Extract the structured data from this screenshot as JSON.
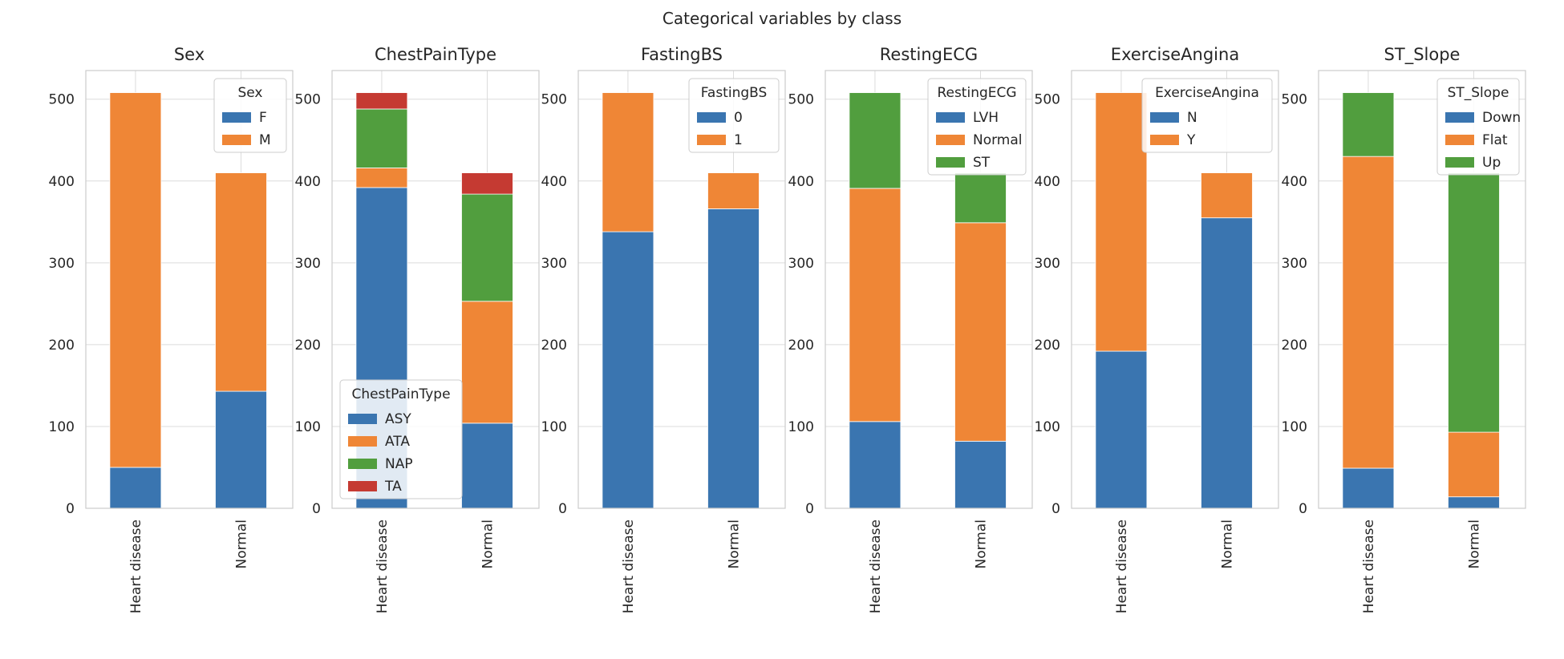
{
  "figure_title": "Categorical variables by class",
  "colors": {
    "blue": "#3a75b0",
    "orange": "#ef8636",
    "green": "#519e3e",
    "red": "#c53a32",
    "grid": "#dcdcdc",
    "spine": "#cccccc",
    "text": "#262626"
  },
  "chart_data": [
    {
      "type": "bar",
      "stacked": true,
      "title": "Sex",
      "categories": [
        "Heart disease",
        "Normal"
      ],
      "ylim": [
        0,
        535
      ],
      "yticks": [
        0,
        100,
        200,
        300,
        400,
        500
      ],
      "grid": true,
      "legend": {
        "title": "Sex",
        "placement": "upper right"
      },
      "series": [
        {
          "name": "F",
          "color": "#3a75b0",
          "values": [
            50,
            143
          ]
        },
        {
          "name": "M",
          "color": "#ef8636",
          "values": [
            458,
            267
          ]
        }
      ]
    },
    {
      "type": "bar",
      "stacked": true,
      "title": "ChestPainType",
      "categories": [
        "Heart disease",
        "Normal"
      ],
      "ylim": [
        0,
        535
      ],
      "yticks": [
        0,
        100,
        200,
        300,
        400,
        500
      ],
      "grid": true,
      "legend": {
        "title": "ChestPainType",
        "placement": "lower left"
      },
      "series": [
        {
          "name": "ASY",
          "color": "#3a75b0",
          "values": [
            392,
            104
          ]
        },
        {
          "name": "ATA",
          "color": "#ef8636",
          "values": [
            24,
            149
          ]
        },
        {
          "name": "NAP",
          "color": "#519e3e",
          "values": [
            72,
            131
          ]
        },
        {
          "name": "TA",
          "color": "#c53a32",
          "values": [
            20,
            26
          ]
        }
      ]
    },
    {
      "type": "bar",
      "stacked": true,
      "title": "FastingBS",
      "categories": [
        "Heart disease",
        "Normal"
      ],
      "ylim": [
        0,
        535
      ],
      "yticks": [
        0,
        100,
        200,
        300,
        400,
        500
      ],
      "grid": true,
      "legend": {
        "title": "FastingBS",
        "placement": "upper right"
      },
      "series": [
        {
          "name": "0",
          "color": "#3a75b0",
          "values": [
            338,
            366
          ]
        },
        {
          "name": "1",
          "color": "#ef8636",
          "values": [
            170,
            44
          ]
        }
      ]
    },
    {
      "type": "bar",
      "stacked": true,
      "title": "RestingECG",
      "categories": [
        "Heart disease",
        "Normal"
      ],
      "ylim": [
        0,
        535
      ],
      "yticks": [
        0,
        100,
        200,
        300,
        400,
        500
      ],
      "grid": true,
      "legend": {
        "title": "RestingECG",
        "placement": "upper right"
      },
      "series": [
        {
          "name": "LVH",
          "color": "#3a75b0",
          "values": [
            106,
            82
          ]
        },
        {
          "name": "Normal",
          "color": "#ef8636",
          "values": [
            285,
            267
          ]
        },
        {
          "name": "ST",
          "color": "#519e3e",
          "values": [
            117,
            61
          ]
        }
      ]
    },
    {
      "type": "bar",
      "stacked": true,
      "title": "ExerciseAngina",
      "categories": [
        "Heart disease",
        "Normal"
      ],
      "ylim": [
        0,
        535
      ],
      "yticks": [
        0,
        100,
        200,
        300,
        400,
        500
      ],
      "grid": true,
      "legend": {
        "title": "ExerciseAngina",
        "placement": "upper right"
      },
      "series": [
        {
          "name": "N",
          "color": "#3a75b0",
          "values": [
            192,
            355
          ]
        },
        {
          "name": "Y",
          "color": "#ef8636",
          "values": [
            316,
            55
          ]
        }
      ]
    },
    {
      "type": "bar",
      "stacked": true,
      "title": "ST_Slope",
      "categories": [
        "Heart disease",
        "Normal"
      ],
      "ylim": [
        0,
        535
      ],
      "yticks": [
        0,
        100,
        200,
        300,
        400,
        500
      ],
      "grid": true,
      "legend": {
        "title": "ST_Slope",
        "placement": "upper right"
      },
      "series": [
        {
          "name": "Down",
          "color": "#3a75b0",
          "values": [
            49,
            14
          ]
        },
        {
          "name": "Flat",
          "color": "#ef8636",
          "values": [
            381,
            79
          ]
        },
        {
          "name": "Up",
          "color": "#519e3e",
          "values": [
            78,
            317
          ]
        }
      ]
    }
  ]
}
